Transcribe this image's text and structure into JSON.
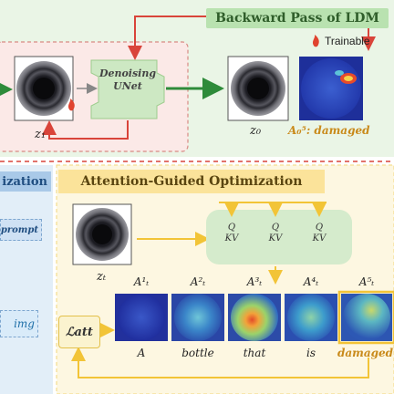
{
  "backward": {
    "title": "Backward Pass of LDM",
    "trainable_label": "Trainable",
    "unet_label_line1": "Denoising",
    "unet_label_line2": "UNet",
    "z1_label": "z₁",
    "z0_label": "z₀",
    "a0_label": "A₀⁵: damaged"
  },
  "optimization": {
    "tag_left": "ization",
    "title": "Attention-Guided Optimization",
    "prompt_box": "prompt",
    "img_box": "img",
    "zt_label": "zₜ",
    "qkv_q": "Q",
    "qkv_kv": "KV",
    "loss_label": "ℒatt"
  },
  "attention_maps": [
    {
      "label": "A¹ₜ",
      "word": "A"
    },
    {
      "label": "A²ₜ",
      "word": "bottle"
    },
    {
      "label": "A³ₜ",
      "word": "that"
    },
    {
      "label": "A⁴ₜ",
      "word": "is"
    },
    {
      "label": "A⁵ₜ",
      "word": "damaged"
    }
  ],
  "colors": {
    "green_arrow": "#2e8b3a",
    "red_arrow": "#d9443a",
    "yellow": "#f2c437",
    "unet_fill": "#cde8c3"
  }
}
